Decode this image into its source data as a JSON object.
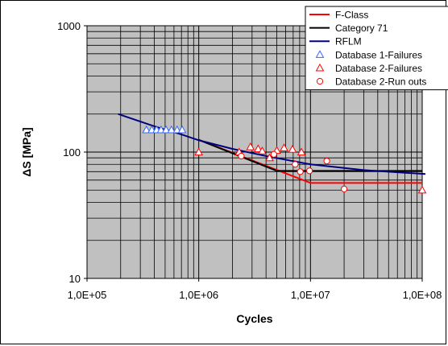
{
  "colors": {
    "plot_background": "#c0c0c0",
    "grid": "#000000",
    "f_class": "#ff0000",
    "category_71": "#000000",
    "rflm": "#000080",
    "db1_failures": "#3366ff",
    "db2": "#ff0000"
  },
  "chart_data": {
    "type": "scatter",
    "x_scale": "log",
    "y_scale": "log",
    "xlabel": "Cycles",
    "ylabel": "ΔS [MPa]",
    "xlim": [
      100000,
      100000000
    ],
    "ylim": [
      10,
      1000
    ],
    "x_ticks": [
      "1,0E+05",
      "1,0E+06",
      "1,0E+07",
      "1,0E+08"
    ],
    "y_ticks": [
      "10",
      "100",
      "1000"
    ],
    "grid": true,
    "legend_position": "top-right",
    "series": [
      {
        "name": "F-Class",
        "kind": "line",
        "color": "#ff0000",
        "points": [
          [
            1000000,
            125
          ],
          [
            10000000,
            57
          ],
          [
            100000000,
            57
          ]
        ]
      },
      {
        "name": "Category 71",
        "kind": "line",
        "color": "#000000",
        "points": [
          [
            1000000,
            125
          ],
          [
            5000000,
            71
          ],
          [
            100000000,
            71
          ]
        ]
      },
      {
        "name": "RFLM",
        "kind": "line",
        "color": "#000080",
        "points": [
          [
            190000,
            200
          ],
          [
            400000,
            160
          ],
          [
            700000,
            138
          ],
          [
            1000000,
            124
          ],
          [
            2000000,
            106
          ],
          [
            4000000,
            93
          ],
          [
            10000000,
            80
          ],
          [
            30000000,
            72
          ],
          [
            110000000,
            67
          ]
        ]
      },
      {
        "name": "Database 1-Failures",
        "kind": "marker",
        "marker": "triangle",
        "color": "#3366ff",
        "points": [
          [
            340000,
            150
          ],
          [
            380000,
            150
          ],
          [
            420000,
            150
          ],
          [
            460000,
            150
          ],
          [
            510000,
            150
          ],
          [
            570000,
            150
          ],
          [
            640000,
            150
          ],
          [
            710000,
            150
          ]
        ]
      },
      {
        "name": "Database 2-Failures",
        "kind": "marker",
        "marker": "triangle",
        "color": "#ff0000",
        "points": [
          [
            1000000,
            100
          ],
          [
            2300000,
            100
          ],
          [
            2900000,
            110
          ],
          [
            3400000,
            106
          ],
          [
            3700000,
            102
          ],
          [
            4300000,
            90
          ],
          [
            5000000,
            103
          ],
          [
            5800000,
            108
          ],
          [
            6900000,
            105
          ],
          [
            8300000,
            100
          ],
          [
            100000000,
            50
          ]
        ]
      },
      {
        "name": "Database 2-Run outs",
        "kind": "marker",
        "marker": "circle",
        "color": "#ff0000",
        "points": [
          [
            2400000,
            93
          ],
          [
            4700000,
            96
          ],
          [
            7300000,
            80
          ],
          [
            8100000,
            70
          ],
          [
            9800000,
            71
          ],
          [
            14000000,
            85
          ],
          [
            20000000,
            51
          ]
        ]
      }
    ]
  }
}
